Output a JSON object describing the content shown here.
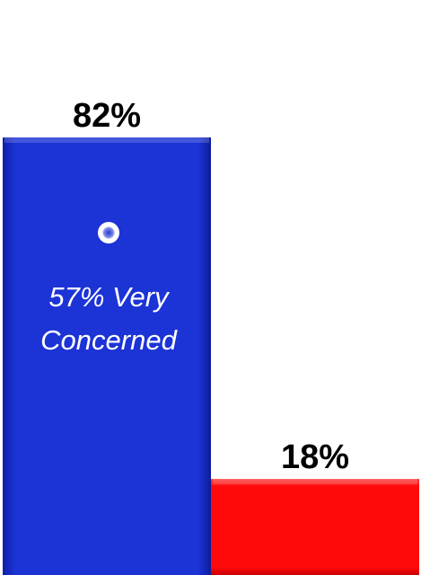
{
  "chart_data": {
    "type": "bar",
    "categories": [
      "",
      ""
    ],
    "values": [
      82,
      18
    ],
    "value_labels": [
      "82%",
      "18%"
    ],
    "colors": [
      "#1a2fd0",
      "#ff0a0a"
    ],
    "ylim": [
      0,
      100
    ],
    "title": "",
    "xlabel": "",
    "ylabel": "",
    "grid": false,
    "annotation": {
      "line1": "57% Very",
      "line2": "Concerned"
    }
  }
}
